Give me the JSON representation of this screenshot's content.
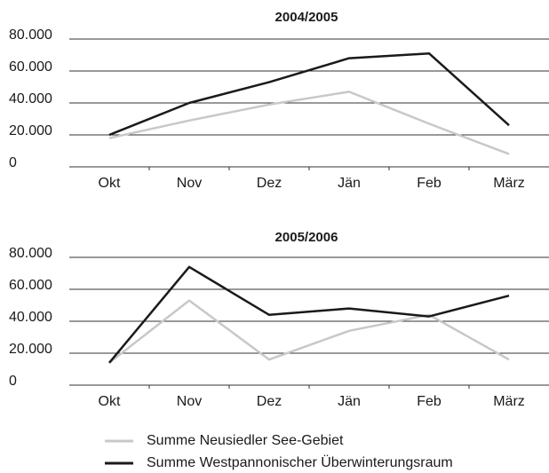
{
  "chart_data": [
    {
      "type": "line",
      "title": "2004/2005",
      "categories": [
        "Okt",
        "Nov",
        "Dez",
        "Jän",
        "Feb",
        "März"
      ],
      "series": [
        {
          "name": "Summe Neusiedler See-Gebiet",
          "color": "#c8c8c8",
          "values": [
            18000,
            29000,
            39000,
            47000,
            27000,
            8000
          ]
        },
        {
          "name": "Summe Westpannonischer Überwinterungsraum",
          "color": "#1a1a1a",
          "values": [
            20000,
            40000,
            53000,
            68000,
            71000,
            26000
          ]
        }
      ],
      "ylim": [
        0,
        80000
      ],
      "yticks": [
        0,
        {
          "value": 20000,
          "label": "20.000"
        },
        {
          "value": 40000,
          "label": "40.000"
        },
        {
          "value": 60000,
          "label": "60.000"
        },
        {
          "value": 80000,
          "label": "80.000"
        }
      ],
      "grid": true
    },
    {
      "type": "line",
      "title": "2005/2006",
      "categories": [
        "Okt",
        "Nov",
        "Dez",
        "Jän",
        "Feb",
        "März"
      ],
      "series": [
        {
          "name": "Summe Neusiedler See-Gebiet",
          "color": "#c8c8c8",
          "values": [
            14000,
            53000,
            16000,
            34000,
            44000,
            16000
          ]
        },
        {
          "name": "Summe Westpannonischer Überwinterungsraum",
          "color": "#1a1a1a",
          "values": [
            14000,
            74000,
            44000,
            48000,
            43000,
            56000
          ]
        }
      ],
      "ylim": [
        0,
        80000
      ],
      "yticks": [
        0,
        {
          "value": 20000,
          "label": "20.000"
        },
        {
          "value": 40000,
          "label": "40.000"
        },
        {
          "value": 60000,
          "label": "60.000"
        },
        {
          "value": 80000,
          "label": "80.000"
        }
      ],
      "grid": true
    }
  ]
}
